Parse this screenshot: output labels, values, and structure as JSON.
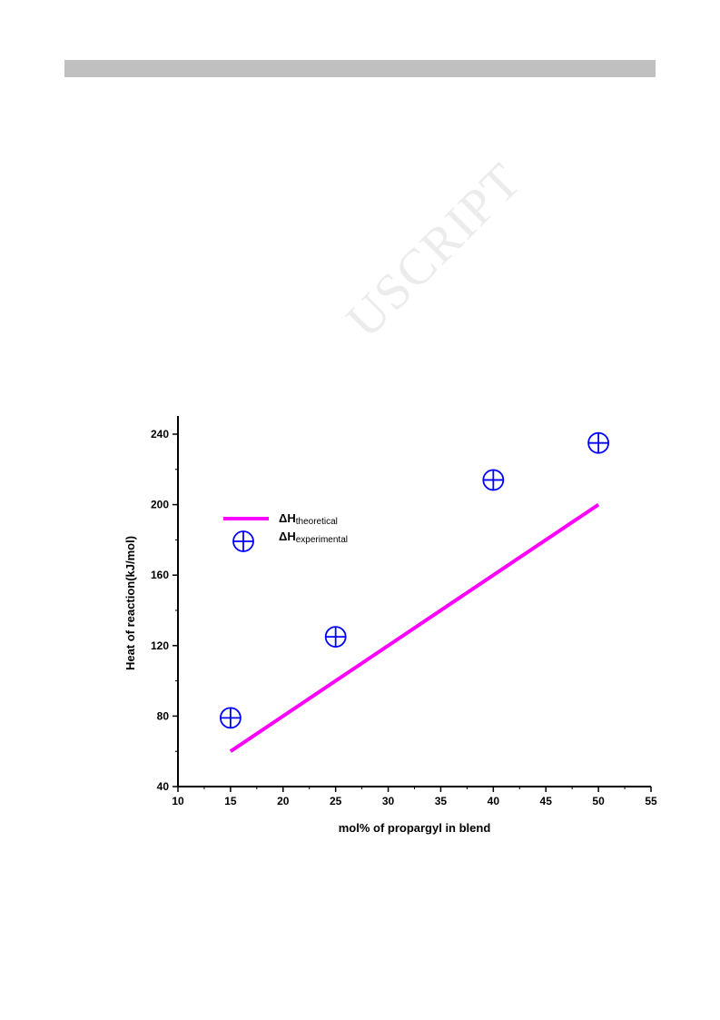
{
  "page": {
    "watermark": "USCRIPT"
  },
  "chart_data": {
    "type": "scatter",
    "xlabel": "mol% of propargyl in blend",
    "ylabel": "Heat of reaction(kJ/mol)",
    "xlim": [
      10,
      55
    ],
    "ylim": [
      40,
      250
    ],
    "x_ticks": [
      10,
      15,
      20,
      25,
      30,
      35,
      40,
      45,
      50,
      55
    ],
    "y_ticks": [
      40,
      80,
      120,
      160,
      200,
      240
    ],
    "grid": false,
    "legend_position": "upper-left",
    "series": [
      {
        "name": "ΔHtheoretical",
        "name_main": "ΔH",
        "name_sub": "theoretical",
        "kind": "line",
        "color": "#ff00ff",
        "x": [
          15,
          50
        ],
        "y": [
          60,
          200
        ]
      },
      {
        "name": "ΔHexperimental",
        "name_main": "ΔH",
        "name_sub": "experimental",
        "kind": "marker",
        "marker": "circle-plus",
        "color": "#0000ff",
        "x": [
          15,
          25,
          40,
          50
        ],
        "y": [
          79,
          125,
          214,
          235
        ]
      }
    ]
  }
}
